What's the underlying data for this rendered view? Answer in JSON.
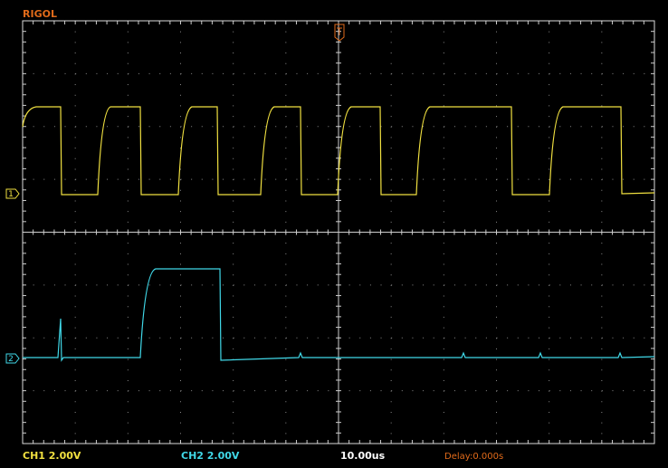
{
  "header": {
    "brand": "RIGOL"
  },
  "markers": {
    "ch1": "1",
    "ch2": "2"
  },
  "status": {
    "ch1": "CH1 2.00V",
    "ch2": "CH2 2.00V",
    "timebase": "10.00us",
    "delay": "Delay:0.000s"
  }
}
